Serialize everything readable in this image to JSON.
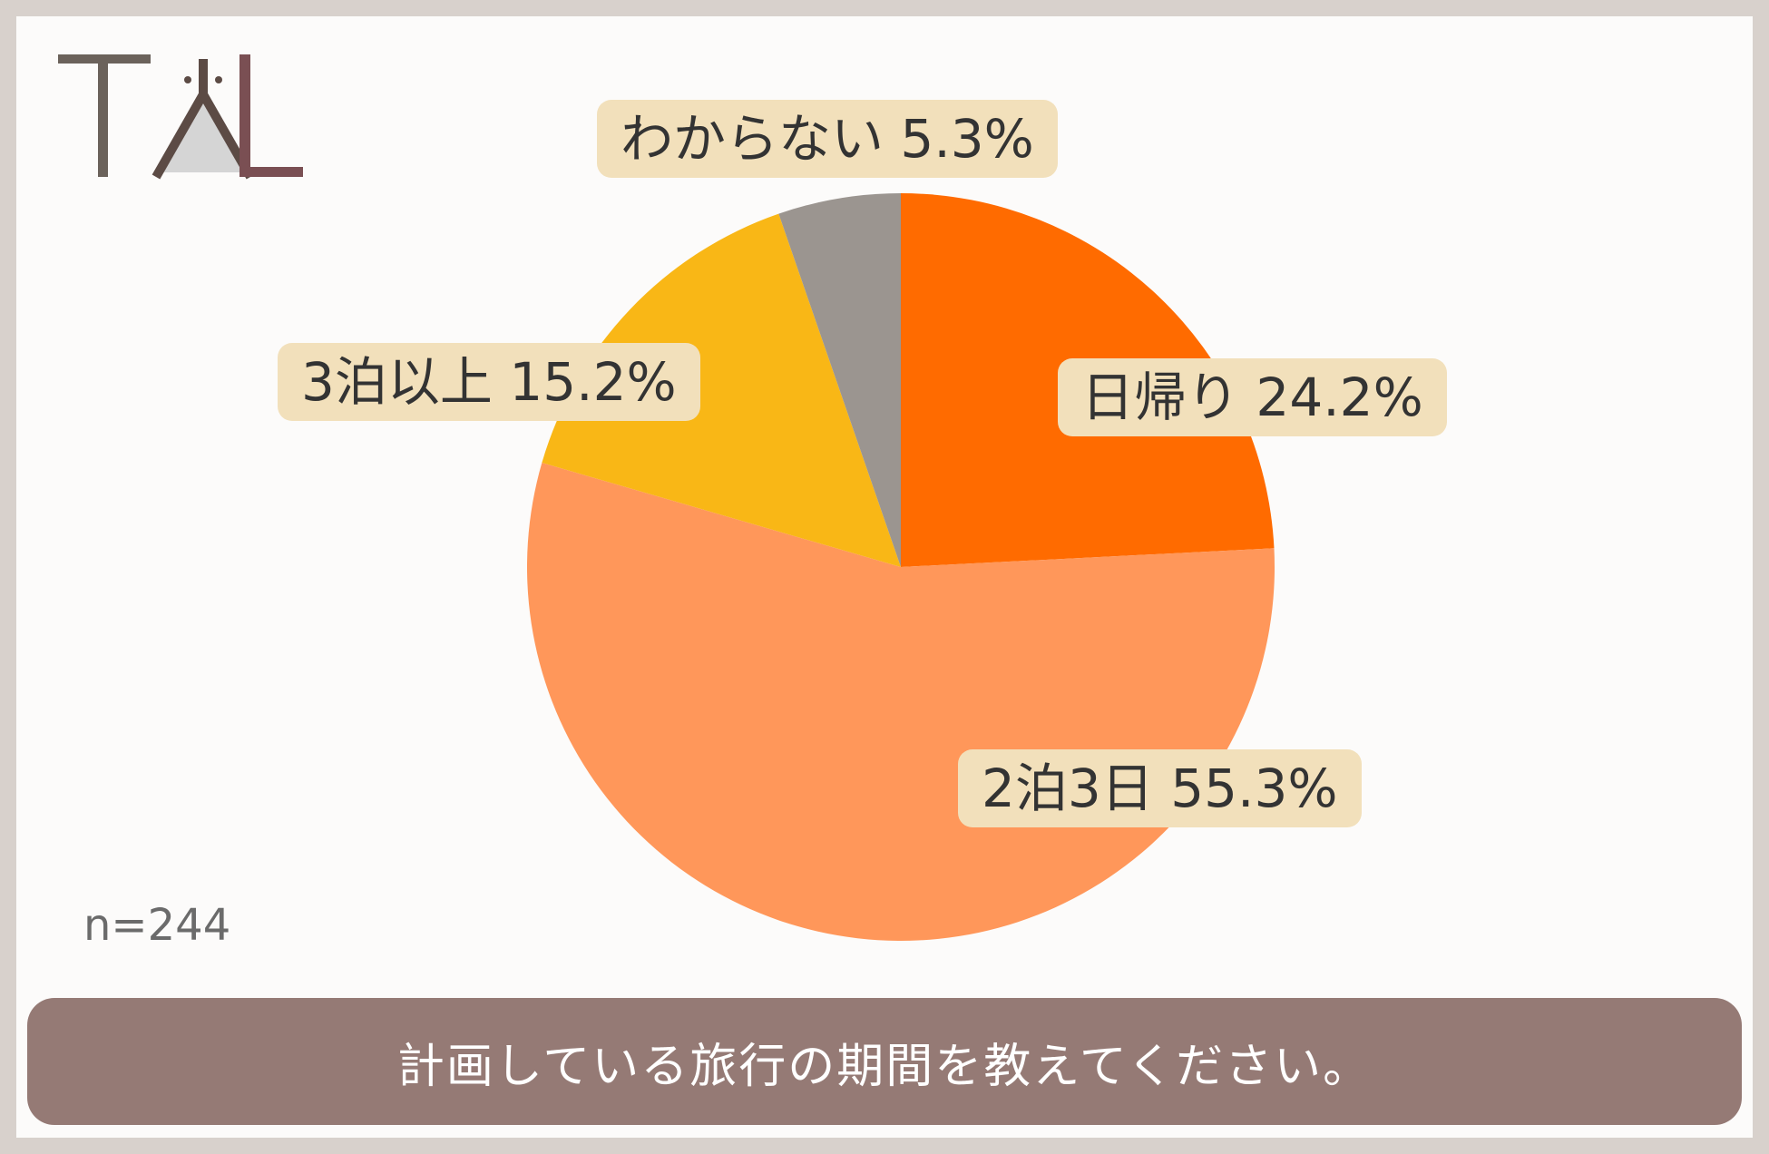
{
  "logo": {
    "name": "TAL-logo",
    "text": "TAL",
    "colors": {
      "t": "#6b625b",
      "a_fill": "#d5d5d5",
      "a_stroke": "#5c4b45",
      "l": "#7a4f53"
    }
  },
  "chart_data": {
    "type": "pie",
    "categories": [
      "日帰り",
      "2泊3日",
      "3泊以上",
      "わからない"
    ],
    "values": [
      24.2,
      55.3,
      15.2,
      5.3
    ],
    "colors": [
      "#ff6b00",
      "#ff975a",
      "#f9b716",
      "#9b9590"
    ],
    "labels": [
      "日帰り 24.2%",
      "2泊3日 55.3%",
      "3泊以上 15.2%",
      "わからない 5.3%"
    ],
    "start": "12 o'clock",
    "direction": "clockwise"
  },
  "sample_size": "n=244",
  "question": "計画している旅行の期間を教えてください。"
}
